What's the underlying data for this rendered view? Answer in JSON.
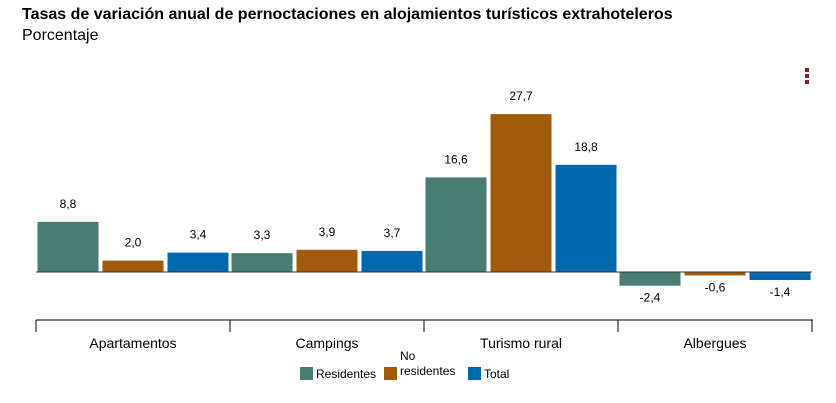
{
  "title": "Tasas de variación anual de pernoctaciones en alojamientos turísticos extrahoteleros",
  "subtitle": "Porcentaje",
  "chart_data": {
    "type": "bar",
    "categories": [
      "Apartamentos",
      "Campings",
      "Turismo rural",
      "Albergues"
    ],
    "series": [
      {
        "name": "Residentes",
        "values": [
          8.8,
          3.3,
          16.6,
          -2.4
        ],
        "labels": [
          "8,8",
          "3,3",
          "16,6",
          "-2,4"
        ],
        "color": "#477d73"
      },
      {
        "name": "No residentes",
        "values": [
          2.0,
          3.9,
          27.7,
          -0.6
        ],
        "labels": [
          "2,0",
          "3,9",
          "27,7",
          "-0,6"
        ],
        "color": "#a25b0b"
      },
      {
        "name": "Total",
        "values": [
          3.4,
          3.7,
          18.8,
          -1.4
        ],
        "labels": [
          "3,4",
          "3,7",
          "18,8",
          "-1,4"
        ],
        "color": "#0068ad"
      }
    ],
    "ylim": [
      -3,
      30
    ],
    "grid": false,
    "legend_position": "bottom"
  },
  "legend": {
    "residentes": "Residentes",
    "no_residentes_1": "No",
    "no_residentes_2": "residentes",
    "total": "Total"
  }
}
